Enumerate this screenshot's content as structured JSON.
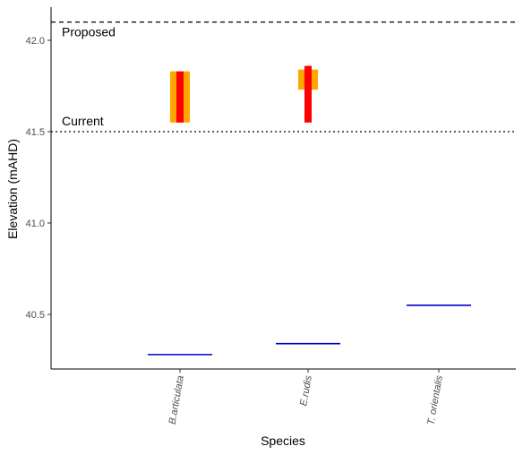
{
  "chart_data": {
    "type": "range-plot",
    "xlabel": "Species",
    "ylabel": "Elevation (mAHD)",
    "ylim": [
      40.2,
      42.2
    ],
    "y_ticks": [
      40.5,
      41.0,
      41.5,
      42.0
    ],
    "y_tick_labels": [
      "40.5",
      "41.0",
      "41.5",
      "42.0"
    ],
    "categories": [
      "B.articulata",
      "E.rudis",
      "T. orientalis"
    ],
    "reference_lines": [
      {
        "label": "Proposed",
        "value": 42.1,
        "style": "dashed"
      },
      {
        "label": "Current",
        "value": 41.5,
        "style": "dotted"
      }
    ],
    "orange_ranges": [
      {
        "category": "B.articulata",
        "low": 41.55,
        "high": 41.83
      },
      {
        "category": "E.rudis",
        "low": 41.73,
        "high": 41.84
      }
    ],
    "red_ranges": [
      {
        "category": "B.articulata",
        "low": 41.55,
        "high": 41.83
      },
      {
        "category": "E.rudis",
        "low": 41.55,
        "high": 41.86
      }
    ],
    "blue_levels": [
      {
        "category": "B.articulata",
        "value": 40.28
      },
      {
        "category": "E.rudis",
        "value": 40.34
      },
      {
        "category": "T. orientalis",
        "value": 40.55
      }
    ],
    "colors": {
      "orange": "#FFA500",
      "red": "#FF0000",
      "blue": "#0000CD",
      "axis": "#000000"
    },
    "grid": false,
    "legend": "none"
  }
}
